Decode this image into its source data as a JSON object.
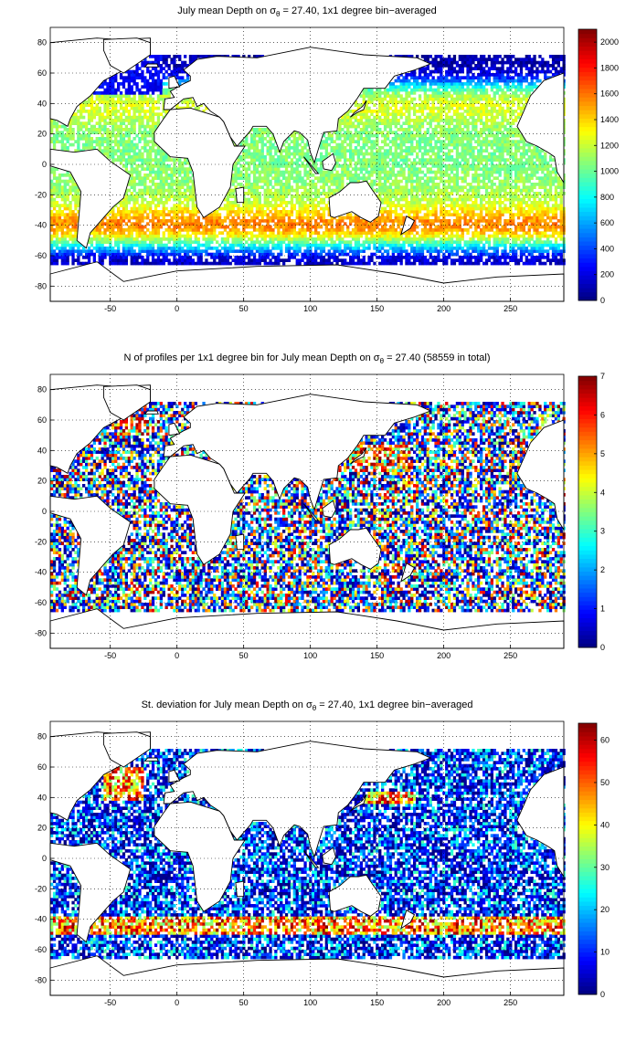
{
  "chart_data": [
    {
      "type": "heatmap",
      "title_pre": "July mean Depth on σ",
      "title_sub": "θ",
      "title_post": " = 27.40, 1x1 degree bin−averaged",
      "xlim": [
        -95,
        290
      ],
      "ylim": [
        -90,
        90
      ],
      "xticks": [
        -50,
        0,
        50,
        100,
        150,
        200,
        250
      ],
      "yticks": [
        80,
        60,
        40,
        20,
        0,
        -20,
        -40,
        -60,
        -80
      ],
      "colorbar": {
        "min": 0,
        "max": 2100,
        "ticks": [
          0,
          200,
          400,
          600,
          800,
          1000,
          1200,
          1400,
          1600,
          1800,
          2000
        ]
      },
      "grid": true,
      "field_profile": {
        "lat_deg": [
          -62,
          -57,
          -52,
          -47,
          -42,
          -37,
          -32,
          -25,
          -15,
          0,
          15,
          25,
          32,
          40,
          45,
          50,
          55,
          60,
          65
        ],
        "depth": [
          150,
          500,
          900,
          1300,
          1550,
          1550,
          1400,
          1200,
          1100,
          1050,
          1050,
          1100,
          1200,
          1250,
          1150,
          900,
          500,
          200,
          100
        ]
      }
    },
    {
      "type": "heatmap",
      "title_pre": "N of profiles per 1x1 degree bin for July mean Depth on σ",
      "title_sub": "θ",
      "title_post": " = 27.40 (58559 in total)",
      "xlim": [
        -95,
        290
      ],
      "ylim": [
        -90,
        90
      ],
      "xticks": [
        -50,
        0,
        50,
        100,
        150,
        200,
        250
      ],
      "yticks": [
        80,
        60,
        40,
        20,
        0,
        -20,
        -40,
        -60,
        -80
      ],
      "colorbar": {
        "min": 0,
        "max": 7,
        "ticks": [
          0,
          1,
          2,
          3,
          4,
          5,
          6,
          7
        ]
      },
      "grid": true
    },
    {
      "type": "heatmap",
      "title_pre": "St. deviation for July mean Depth on σ",
      "title_sub": "θ",
      "title_post": " = 27.40, 1x1 degree bin−averaged",
      "xlim": [
        -95,
        290
      ],
      "ylim": [
        -90,
        90
      ],
      "xticks": [
        -50,
        0,
        50,
        100,
        150,
        200,
        250
      ],
      "yticks": [
        80,
        60,
        40,
        20,
        0,
        -20,
        -40,
        -60,
        -80
      ],
      "colorbar": {
        "min": 0,
        "max": 64,
        "ticks": [
          0,
          10,
          20,
          30,
          40,
          50,
          60
        ]
      },
      "grid": true
    }
  ]
}
